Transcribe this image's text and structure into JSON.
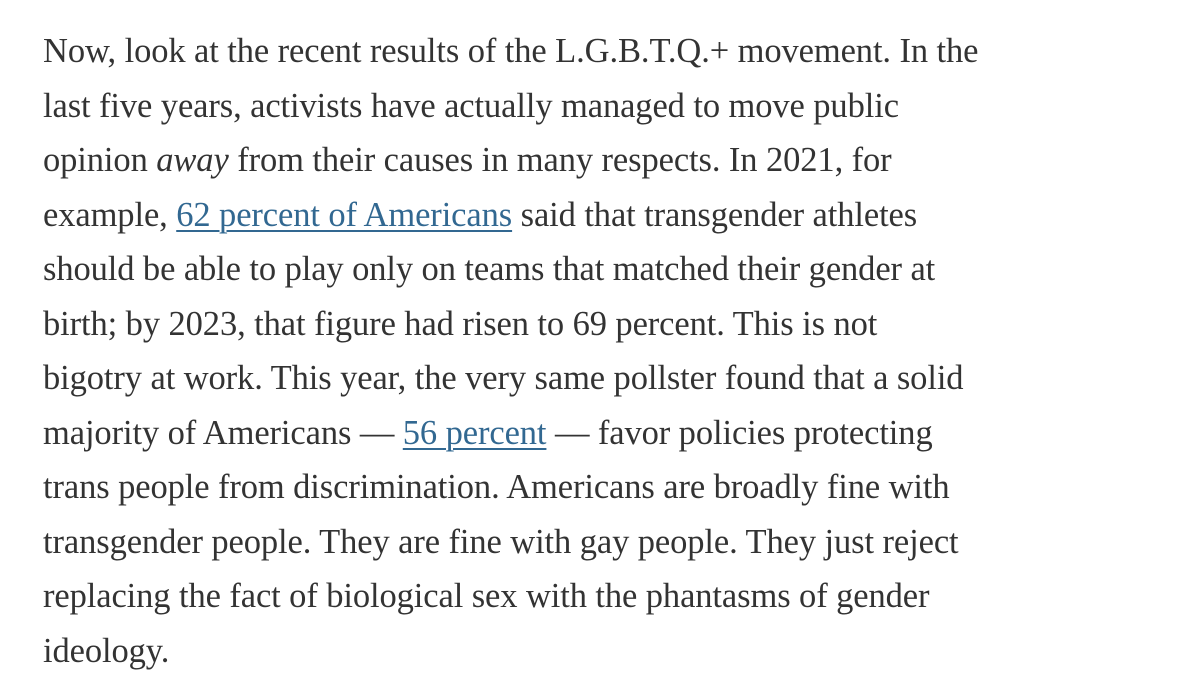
{
  "article": {
    "lines": [
      "Now, look at the recent results of the L.G.B.T.Q.+ movement. In the",
      "last five years, activists have actually managed to move public"
    ],
    "line3": {
      "before": "opinion ",
      "emphasis": "away",
      "after": " from their causes in many respects. In 2021, for"
    },
    "line4": {
      "before": "example, ",
      "link": "62 percent of Americans",
      "after": " said that transgender athletes"
    },
    "lines_mid": [
      "should be able to play only on teams that matched their gender at",
      "birth; by 2023, that figure had risen to 69 percent. This is not",
      "bigotry at work. This year, the very same pollster found that a solid"
    ],
    "line8": {
      "before": "majority of Americans — ",
      "link": "56 percent",
      "after": " — favor policies protecting"
    },
    "lines_end": [
      "trans people from discrimination. Americans are broadly fine with",
      "transgender people. They are fine with gay people. They just reject",
      "replacing the fact of biological sex with the phantasms of gender",
      "ideology."
    ]
  },
  "colors": {
    "text": "#333333",
    "link": "#326891"
  }
}
